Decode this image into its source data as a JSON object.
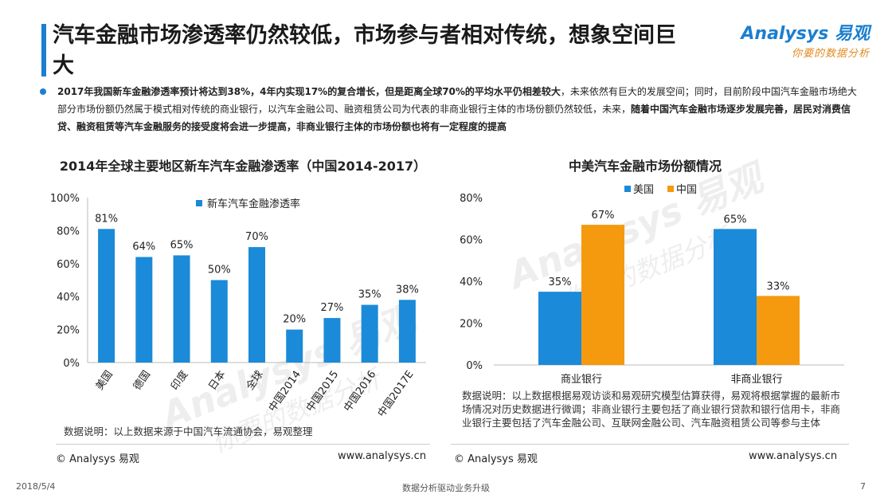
{
  "header": {
    "title": "汽车金融市场渗透率仍然较低，市场参与者相对传统，想象空间巨大",
    "logo_text": "Analysys 易观",
    "logo_slogan": "你要的数据分析"
  },
  "summary": {
    "part1_bold": "2017年我国新车金融渗透率预计将达到38%，4年内实现17%的复合增长，但是距离全球70%的平均水平仍相差较大",
    "part2": "，未来依然有巨大的发展空间；同时，目前阶段中国汽车金融市场绝大部分市场份额仍然属于模式相对传统的商业银行，以汽车金融公司、融资租赁公司为代表的非商业银行主体的市场份额仍然较低，未来，",
    "part3_bold": "随着中国汽车金融市场逐步发展完善，居民对消费信贷、融资租赁等汽车金融服务的接受度将会进一步提高，非商业银行主体的市场份额也将有一定程度的提高"
  },
  "chart_data": [
    {
      "type": "bar",
      "title": "2014年全球主要地区新车汽车金融渗透率（中国2014-2017）",
      "categories": [
        "美国",
        "德国",
        "印度",
        "日本",
        "全球",
        "中国2014",
        "中国2015",
        "中国2016",
        "中国2017E"
      ],
      "series": [
        {
          "name": "新车汽车金融渗透率",
          "values": [
            81,
            64,
            65,
            50,
            70,
            20,
            27,
            35,
            38
          ],
          "color": "#1b8ad8"
        }
      ],
      "data_labels": [
        "81%",
        "64%",
        "65%",
        "50%",
        "70%",
        "20%",
        "27%",
        "35%",
        "38%"
      ],
      "y_ticks": [
        "0%",
        "20%",
        "40%",
        "60%",
        "80%",
        "100%"
      ],
      "ylim": [
        0,
        100
      ],
      "legend_position": "top",
      "grid": false
    },
    {
      "type": "bar",
      "title": "中美汽车金融市场份额情况",
      "categories": [
        "商业银行",
        "非商业银行"
      ],
      "series": [
        {
          "name": "美国",
          "values": [
            35,
            65
          ],
          "color": "#1b8ad8"
        },
        {
          "name": "中国",
          "values": [
            67,
            33
          ],
          "color": "#f59a0e"
        }
      ],
      "data_labels": [
        [
          "35%",
          "65%"
        ],
        [
          "67%",
          "33%"
        ]
      ],
      "y_ticks": [
        "0%",
        "20%",
        "40%",
        "60%",
        "80%"
      ],
      "ylim": [
        0,
        80
      ],
      "legend_position": "top",
      "grid": false
    }
  ],
  "notes": {
    "left": "数据说明：以上数据来源于中国汽车流通协会，易观整理",
    "right": "数据说明：以上数据根据易观访谈和易观研究模型估算获得，易观将根据掌握的最新市场情况对历史数据进行微调；非商业银行主要包括了商业银行贷款和银行信用卡，非商业银行主要包括了汽车金融公司、互联网金融公司、汽车融资租赁公司等参与主体"
  },
  "footer": {
    "copyright_left": "© Analysys 易观",
    "url_left": "www.analysys.cn",
    "copyright_right": "© Analysys 易观",
    "url_right": "www.analysys.cn",
    "date": "2018/5/4",
    "slogan": "数据分析驱动业务升级",
    "page": "7"
  },
  "watermark": {
    "text": "Analysys 易观",
    "slogan": "你要的数据分析"
  }
}
